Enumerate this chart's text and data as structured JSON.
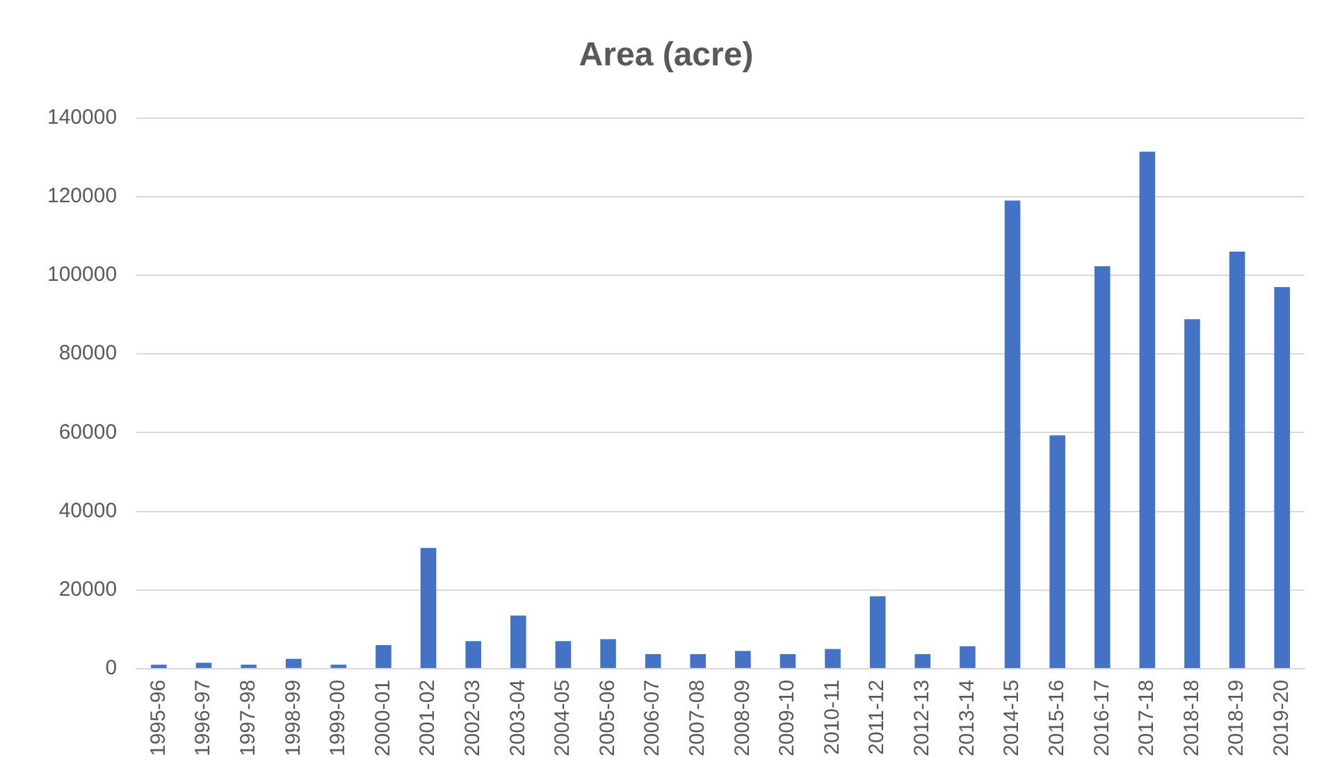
{
  "chart_data": {
    "type": "bar",
    "title": "Area (acre)",
    "categories": [
      "1995-96",
      "1996-97",
      "1997-98",
      "1998-99",
      "1999-00",
      "2000-01",
      "2001-02",
      "2002-03",
      "2003-04",
      "2004-05",
      "2005-06",
      "2006-07",
      "2007-08",
      "2008-09",
      "2009-10",
      "2010-11",
      "2011-12",
      "2012-13",
      "2013-14",
      "2014-15",
      "2015-16",
      "2016-17",
      "2017-18",
      "2018-18",
      "2018-19",
      "2019-20"
    ],
    "values": [
      1000,
      1500,
      1000,
      2500,
      1000,
      6000,
      30700,
      7000,
      13500,
      7000,
      7500,
      3700,
      3700,
      4500,
      3700,
      5000,
      18400,
      3700,
      5700,
      119000,
      59300,
      102300,
      131400,
      88800,
      106000,
      97000
    ],
    "color": "#4472c4",
    "ylim": [
      0,
      140000
    ],
    "yticks": [
      0,
      20000,
      40000,
      60000,
      80000,
      100000,
      120000,
      140000
    ],
    "grid": "y",
    "legend": false
  }
}
